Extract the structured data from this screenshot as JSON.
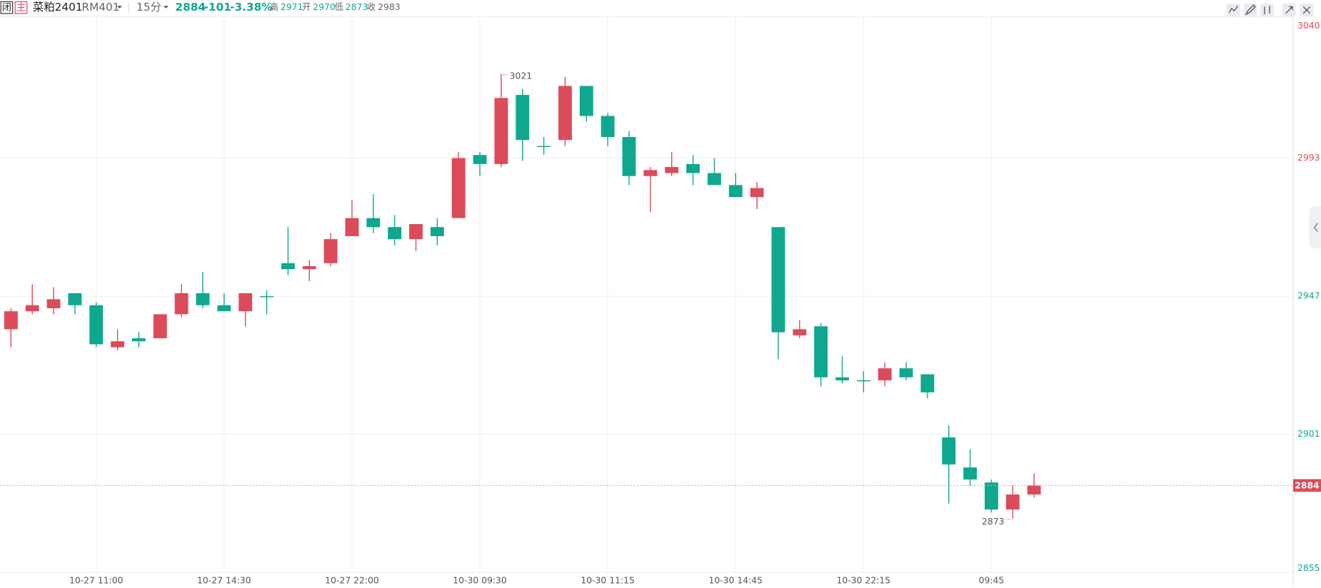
{
  "header": {
    "status": "闭",
    "main": "主",
    "name": "菜粕2401",
    "code": "RM401",
    "period": "15分",
    "price": 2884,
    "change": -101,
    "change_pct": "-3.38%",
    "stats": [
      {
        "label": "高",
        "value": 2971
      },
      {
        "label": "开",
        "value": 2970
      },
      {
        "label": "低",
        "value": 2873
      },
      {
        "label": "收",
        "value": 2983
      }
    ]
  },
  "chart_data": {
    "type": "candlestick",
    "categories": [
      null,
      null,
      null,
      null,
      "10-27 11:00",
      null,
      null,
      null,
      null,
      null,
      "10-27 14:30",
      null,
      null,
      null,
      null,
      null,
      "10-27 22:00",
      null,
      null,
      null,
      null,
      null,
      "10-30 09:30",
      null,
      null,
      null,
      null,
      null,
      "10-30 11:15",
      null,
      null,
      null,
      null,
      null,
      "10-30 14:45",
      null,
      null,
      null,
      null,
      null,
      "10-30 22:15",
      null,
      null,
      null,
      null,
      null,
      "09:45",
      null,
      null
    ],
    "open": [
      2936,
      2942,
      2943,
      2948,
      2944,
      2930,
      2933,
      2933,
      2941,
      2948,
      2944,
      2942,
      2947,
      2958,
      2956,
      2958,
      2967,
      2973,
      2970,
      2966,
      2970,
      2973,
      2994,
      2991,
      3014,
      2997,
      2999,
      3017,
      3007,
      3000,
      2987,
      2988,
      2991,
      2988,
      2984,
      2980,
      2970,
      2934,
      2937,
      2920,
      2919,
      2919,
      2923,
      2921,
      2900,
      2890,
      2885,
      2876,
      2881
    ],
    "high": [
      2943,
      2951,
      2950,
      2948,
      2945,
      2936,
      2935,
      2941,
      2951,
      2955,
      2948,
      2948,
      2949,
      2970,
      2959,
      2968,
      2979,
      2981,
      2974,
      2971,
      2973,
      2995,
      2995,
      3021,
      3016,
      3000,
      3020,
      3017,
      3008,
      3002,
      2990,
      2995,
      2994,
      2993,
      2988,
      2985,
      2970,
      2939,
      2938,
      2927,
      2922,
      2925,
      2925,
      2921,
      2904,
      2896,
      2886,
      2884,
      2888
    ],
    "low": [
      2930,
      2941,
      2941,
      2941,
      2930,
      2929,
      2930,
      2933,
      2940,
      2943,
      2942,
      2937,
      2941,
      2954,
      2952,
      2957,
      2967,
      2968,
      2964,
      2962,
      2964,
      2973,
      2987,
      2990,
      2992,
      2994,
      2997,
      3005,
      2997,
      2984,
      2975,
      2987,
      2984,
      2984,
      2980,
      2976,
      2926,
      2933,
      2917,
      2918,
      2915,
      2917,
      2919,
      2913,
      2878,
      2884,
      2875,
      2873,
      2880
    ],
    "close": [
      2942,
      2944,
      2946,
      2944,
      2931,
      2932,
      2932,
      2941,
      2948,
      2944,
      2942,
      2948,
      2947,
      2956,
      2957,
      2966,
      2973,
      2970,
      2966,
      2971,
      2967,
      2993,
      2991,
      3013,
      2999,
      2997,
      3017,
      3007,
      3000,
      2987,
      2989,
      2990,
      2988,
      2984,
      2980,
      2983,
      2935,
      2936,
      2920,
      2919,
      2919,
      2923,
      2920,
      2915,
      2891,
      2886,
      2876,
      2881,
      2884
    ],
    "ylim": [
      2855,
      3040
    ],
    "yticks": [
      3040,
      2993,
      2947,
      2901,
      2855
    ],
    "grid": true,
    "up_color": "#dc4b5a",
    "down_color": "#0ea88f"
  }
}
